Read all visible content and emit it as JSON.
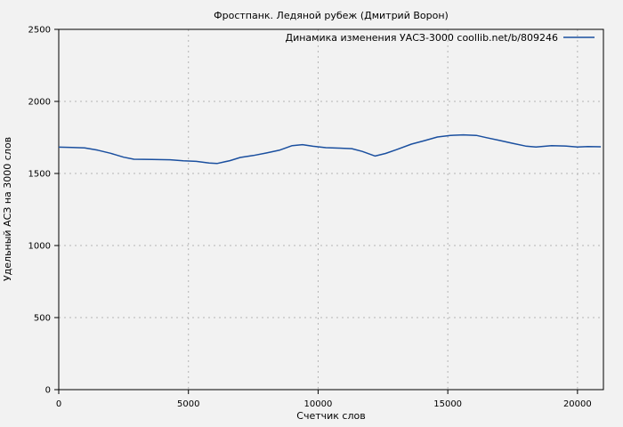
{
  "window": {
    "background": "#f2f2f2"
  },
  "chart_data": {
    "type": "line",
    "title": "Фростпанк. Ледяной рубеж (Дмитрий Ворон)",
    "xlabel": "Счетчик слов",
    "ylabel": "Удельный АСЗ на 3000 слов",
    "legend": "Динамика изменения УАСЗ-3000 coollib.net/b/809246",
    "legend_position": "top-right-inside",
    "xlim": [
      0,
      21000
    ],
    "ylim": [
      0,
      2500
    ],
    "xticks": [
      0,
      5000,
      10000,
      15000,
      20000
    ],
    "yticks": [
      0,
      500,
      1000,
      1500,
      2000,
      2500
    ],
    "grid": true,
    "grid_style": "dashed",
    "colors": {
      "line": "#1a4f9f",
      "grid": "#b4b4b4",
      "axis": "#000000",
      "background": "#f2f2f2",
      "text": "#000000"
    },
    "series": [
      {
        "name": "Динамика изменения УАСЗ-3000 coollib.net/b/809246",
        "points": [
          [
            0,
            1683
          ],
          [
            500,
            1681
          ],
          [
            1000,
            1677
          ],
          [
            1500,
            1662
          ],
          [
            2000,
            1640
          ],
          [
            2500,
            1613
          ],
          [
            2900,
            1599
          ],
          [
            3600,
            1597
          ],
          [
            4300,
            1595
          ],
          [
            4800,
            1588
          ],
          [
            5300,
            1584
          ],
          [
            5800,
            1572
          ],
          [
            6100,
            1569
          ],
          [
            6600,
            1589
          ],
          [
            7000,
            1611
          ],
          [
            7500,
            1625
          ],
          [
            8000,
            1642
          ],
          [
            8500,
            1661
          ],
          [
            9000,
            1693
          ],
          [
            9400,
            1700
          ],
          [
            9800,
            1689
          ],
          [
            10300,
            1679
          ],
          [
            10800,
            1676
          ],
          [
            11300,
            1672
          ],
          [
            11700,
            1653
          ],
          [
            12200,
            1621
          ],
          [
            12600,
            1639
          ],
          [
            13000,
            1664
          ],
          [
            13600,
            1704
          ],
          [
            14100,
            1728
          ],
          [
            14600,
            1753
          ],
          [
            15100,
            1764
          ],
          [
            15600,
            1768
          ],
          [
            16100,
            1764
          ],
          [
            16500,
            1748
          ],
          [
            17000,
            1729
          ],
          [
            17500,
            1709
          ],
          [
            18000,
            1690
          ],
          [
            18400,
            1684
          ],
          [
            19000,
            1693
          ],
          [
            19500,
            1691
          ],
          [
            20000,
            1684
          ],
          [
            20400,
            1687
          ],
          [
            20900,
            1685
          ]
        ]
      }
    ]
  }
}
